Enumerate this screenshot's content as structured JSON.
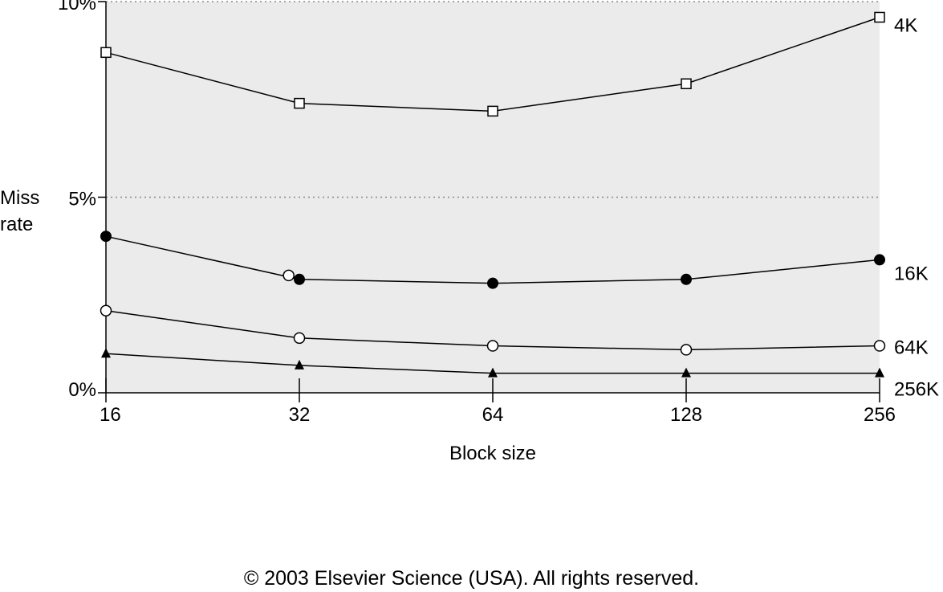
{
  "chart_data": {
    "type": "line",
    "title": "",
    "xlabel": "Block size",
    "ylabel": [
      "Miss",
      "rate"
    ],
    "x": [
      16,
      32,
      64,
      128,
      256
    ],
    "x_scale": "log2",
    "ylim": [
      0,
      10
    ],
    "y_ticks": [
      {
        "value": 0,
        "label": "0%"
      },
      {
        "value": 5,
        "label": "5%"
      },
      {
        "value": 10,
        "label": "10%"
      }
    ],
    "grid": "dotted horizontal at 5% and 10%",
    "background_color": "#ebebeb",
    "series": [
      {
        "name": "4K",
        "marker": "open-square",
        "values": [
          8.7,
          7.4,
          7.2,
          7.9,
          9.6
        ]
      },
      {
        "name": "16K",
        "marker": "filled-circle",
        "values": [
          4.0,
          2.9,
          2.8,
          2.9,
          3.4
        ]
      },
      {
        "name": "64K",
        "marker": "open-circle",
        "values": [
          2.1,
          1.4,
          1.2,
          1.1,
          1.2
        ]
      },
      {
        "name": "256K",
        "marker": "filled-triangle",
        "values": [
          1.0,
          0.7,
          0.5,
          0.5,
          0.5
        ]
      }
    ],
    "annotations": [
      {
        "label": "open-circle near 32 on 16K line",
        "x": 30.8,
        "y": 3.0,
        "marker": "open-circle"
      }
    ]
  },
  "footer": {
    "copyright": "© 2003 Elsevier Science (USA). All rights reserved."
  }
}
